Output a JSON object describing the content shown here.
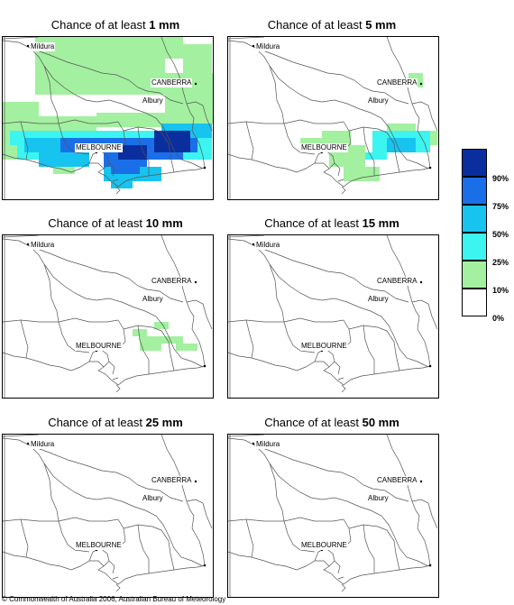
{
  "title_prefix": "Chance of at least",
  "panels": [
    {
      "amount": "1 mm"
    },
    {
      "amount": "5 mm"
    },
    {
      "amount": "10 mm"
    },
    {
      "amount": "15 mm"
    },
    {
      "amount": "25 mm"
    },
    {
      "amount": "50 mm"
    }
  ],
  "places": {
    "mildura": "Mildura",
    "canberra": "CANBERRA",
    "albury": "Albury",
    "melbourne": "MELBOURNE"
  },
  "legend": {
    "labels": [
      "90%",
      "75%",
      "50%",
      "25%",
      "10%",
      "0%"
    ],
    "colors": [
      "#0a2e9e",
      "#1a6fe8",
      "#17c4ef",
      "#3cf5f0",
      "#a3f0a0",
      "#ffffff"
    ]
  },
  "copyright": "© Commonwealth of Australia 2006, Australian Bureau of Meteorology"
}
